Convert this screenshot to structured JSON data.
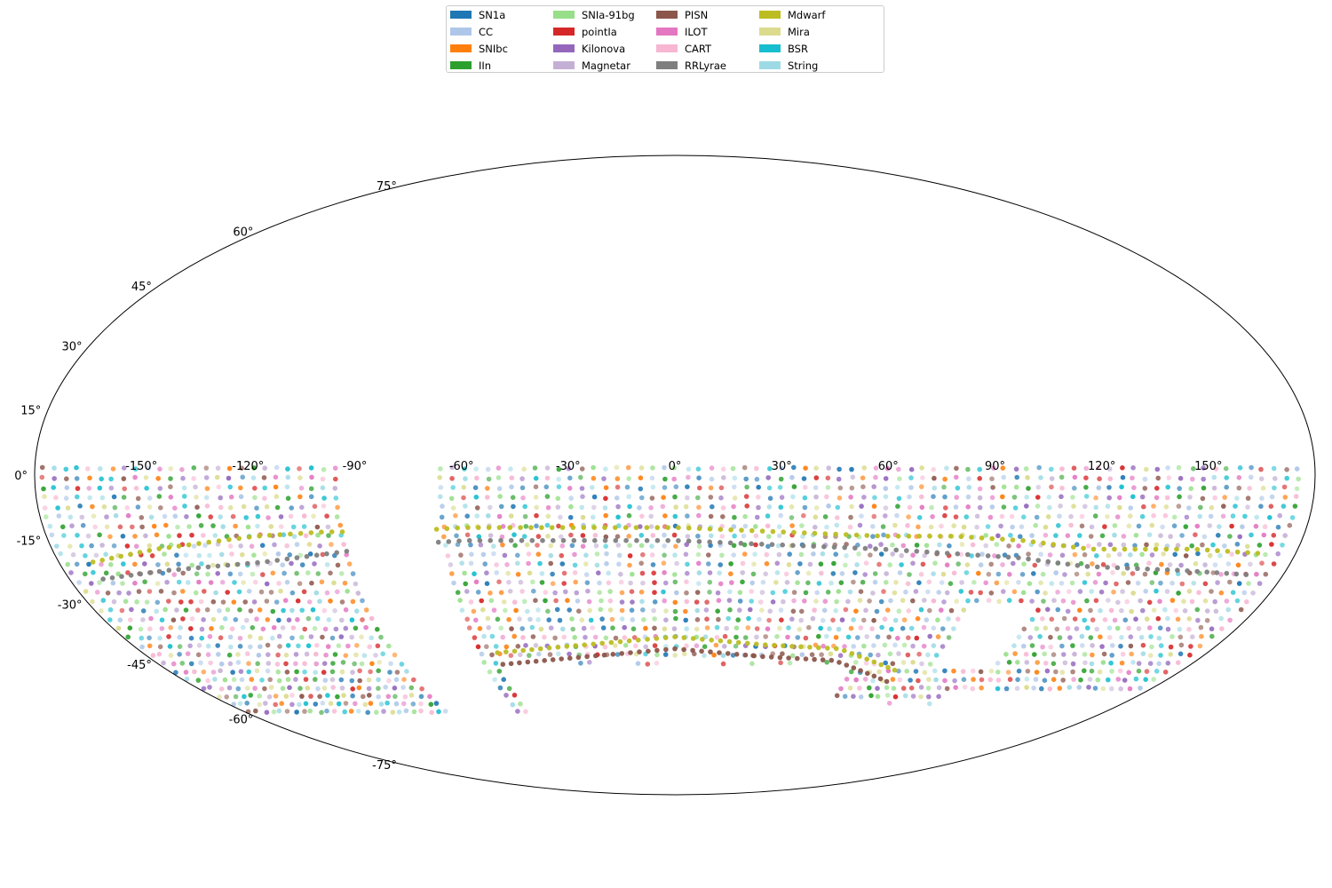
{
  "chart_data": {
    "type": "scatter",
    "projection": "mollweide",
    "title": "",
    "xlabel": "",
    "ylabel": "",
    "grid": false,
    "legend_placement": "top-center",
    "xlim": [
      -180,
      180
    ],
    "ylim": [
      -90,
      90
    ],
    "x_ticks": [
      -150,
      -120,
      -90,
      -60,
      -30,
      0,
      30,
      60,
      90,
      120,
      150
    ],
    "x_tick_labels": [
      "-150°",
      "-120°",
      "-90°",
      "-60°",
      "-30°",
      "0°",
      "30°",
      "60°",
      "90°",
      "120°",
      "150°"
    ],
    "y_ticks": [
      75,
      60,
      45,
      30,
      15,
      0,
      -15,
      -30,
      -45,
      -60,
      -75
    ],
    "y_tick_labels": [
      "75°",
      "60°",
      "45°",
      "30°",
      "15°",
      "0°",
      "-15°",
      "-30°",
      "-45°",
      "-60°",
      "-75°"
    ],
    "series": [
      {
        "name": "SN1a",
        "color": "#1f77b4"
      },
      {
        "name": "CC",
        "color": "#aec7e8"
      },
      {
        "name": "SNIbc",
        "color": "#ff7f0e"
      },
      {
        "name": "IIn",
        "color": "#2ca02c"
      },
      {
        "name": "SNIa-91bg",
        "color": "#98df8a"
      },
      {
        "name": "pointIa",
        "color": "#d62728"
      },
      {
        "name": "Kilonova",
        "color": "#9467bd"
      },
      {
        "name": "Magnetar",
        "color": "#c5b0d5"
      },
      {
        "name": "PISN",
        "color": "#8c564b"
      },
      {
        "name": "ILOT",
        "color": "#e377c2"
      },
      {
        "name": "CART",
        "color": "#f7b6d2"
      },
      {
        "name": "RRLyrae",
        "color": "#7f7f7f"
      },
      {
        "name": "Mdwarf",
        "color": "#bcbd22"
      },
      {
        "name": "Mira",
        "color": "#dbdb8d"
      },
      {
        "name": "BSR",
        "color": "#17becf"
      },
      {
        "name": "String",
        "color": "#9edae5"
      }
    ],
    "point_colors_mixed": [
      "#1f77b4",
      "#aec7e8",
      "#ff7f0e",
      "#2ca02c",
      "#98df8a",
      "#d62728",
      "#9467bd",
      "#c5b0d5",
      "#8c564b",
      "#e377c2",
      "#f7b6d2",
      "#17becf",
      "#9edae5",
      "#dbdb8d"
    ],
    "footprint": {
      "lat_range": [
        -60,
        2
      ],
      "lon_gaps": [
        [
          -95,
          -68
        ]
      ],
      "bands": [
        {
          "series": "Mdwarf",
          "description": "curved band of Mdwarf points",
          "points": [
            [
              -170,
              -20
            ],
            [
              -150,
              -17
            ],
            [
              -120,
              -14
            ],
            [
              -100,
              -13
            ],
            [
              -80,
              -13
            ],
            [
              -60,
              -12
            ],
            [
              -30,
              -12
            ],
            [
              0,
              -12
            ],
            [
              30,
              -13
            ],
            [
              60,
              -14
            ],
            [
              80,
              -14
            ],
            [
              100,
              -15
            ],
            [
              120,
              -17
            ],
            [
              150,
              -17
            ],
            [
              170,
              -18
            ]
          ]
        },
        {
          "series": "RRLyrae",
          "description": "curved band of RRLyrae points",
          "points": [
            [
              -170,
              -24
            ],
            [
              -150,
              -22
            ],
            [
              -120,
              -20
            ],
            [
              -100,
              -18
            ],
            [
              -80,
              -16
            ],
            [
              -60,
              -15
            ],
            [
              -30,
              -15
            ],
            [
              0,
              -15
            ],
            [
              30,
              -16
            ],
            [
              60,
              -17
            ],
            [
              80,
              -18
            ],
            [
              100,
              -19
            ],
            [
              120,
              -21
            ],
            [
              150,
              -22
            ],
            [
              170,
              -23
            ]
          ]
        },
        {
          "series": "PISN",
          "description": "lower arc of PISN points",
          "points": [
            [
              -60,
              -45
            ],
            [
              -30,
              -43
            ],
            [
              0,
              -41
            ],
            [
              30,
              -43
            ],
            [
              55,
              -44
            ],
            [
              80,
              -50
            ]
          ]
        },
        {
          "series": "Mdwarf",
          "description": "lower arc of Mdwarf points",
          "points": [
            [
              -60,
              -42
            ],
            [
              -30,
              -40
            ],
            [
              0,
              -38
            ],
            [
              30,
              -40
            ],
            [
              55,
              -41
            ],
            [
              80,
              -47
            ]
          ]
        }
      ]
    }
  }
}
